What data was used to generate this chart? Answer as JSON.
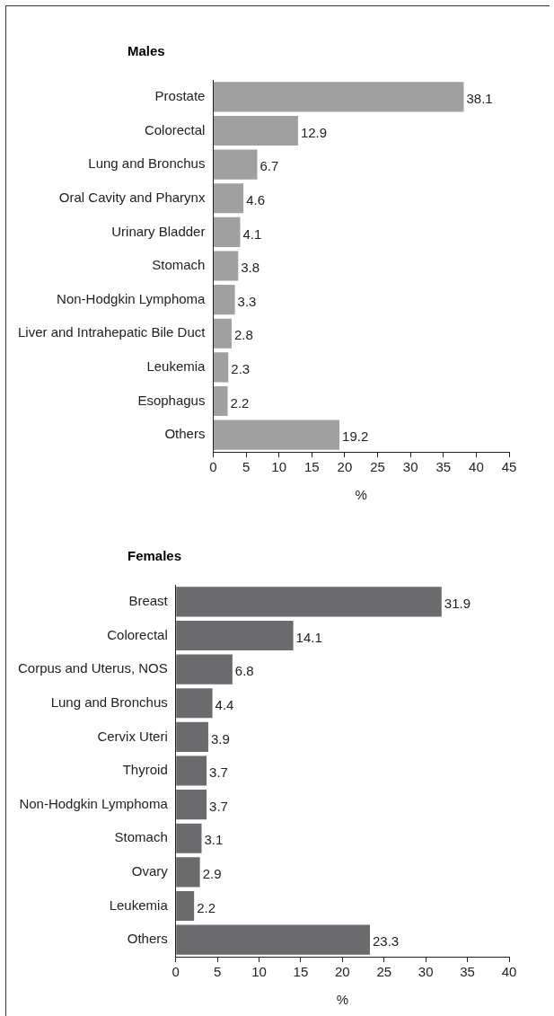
{
  "chart_data": [
    {
      "type": "bar",
      "orientation": "horizontal",
      "title": "Males",
      "xlabel": "%",
      "categories": [
        "Prostate",
        "Colorectal",
        "Lung and Bronchus",
        "Oral Cavity and Pharynx",
        "Urinary Bladder",
        "Stomach",
        "Non-Hodgkin Lymphoma",
        "Liver and Intrahepatic Bile Duct",
        "Leukemia",
        "Esophagus",
        "Others"
      ],
      "values": [
        38.1,
        12.9,
        6.7,
        4.6,
        4.1,
        3.8,
        3.3,
        2.8,
        2.3,
        2.2,
        19.2
      ],
      "color": "#a0a0a1",
      "xlim": [
        0,
        45
      ],
      "xticks": [
        0,
        5,
        10,
        15,
        20,
        25,
        30,
        35,
        40,
        45
      ],
      "grid": false,
      "data_labels": true
    },
    {
      "type": "bar",
      "orientation": "horizontal",
      "title": "Females",
      "xlabel": "%",
      "categories": [
        "Breast",
        "Colorectal",
        "Corpus and Uterus, NOS",
        "Lung and Bronchus",
        "Cervix Uteri",
        "Thyroid",
        "Non-Hodgkin Lymphoma",
        "Stomach",
        "Ovary",
        "Leukemia",
        "Others"
      ],
      "values": [
        31.9,
        14.1,
        6.8,
        4.4,
        3.9,
        3.7,
        3.7,
        3.1,
        2.9,
        2.2,
        23.3
      ],
      "color": "#6b6b6d",
      "xlim": [
        0,
        40
      ],
      "xticks": [
        0,
        5,
        10,
        15,
        20,
        25,
        30,
        35,
        40
      ],
      "grid": false,
      "data_labels": true
    }
  ]
}
